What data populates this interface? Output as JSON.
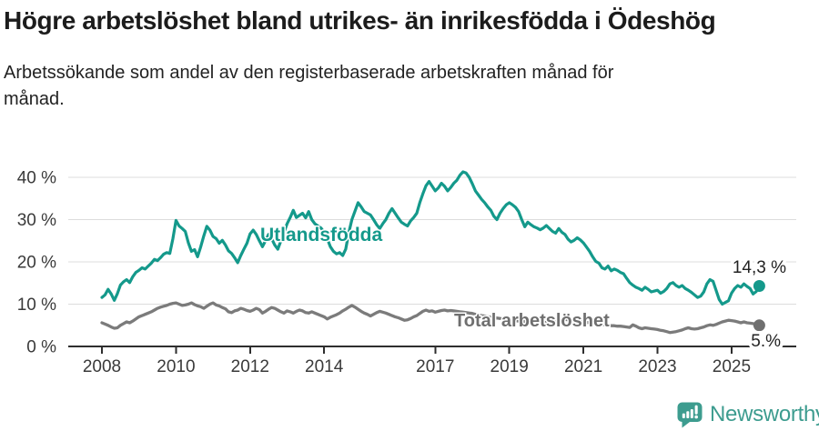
{
  "title": "Högre arbetslöshet bland utrikes- än inrikesfödda i Ödeshög",
  "subtitle": "Arbetssökande som andel av den registerbaserade arbetskraften månad för månad.",
  "labels": {
    "utlandsfodda": "Utlandsfödda",
    "total": "Total arbetslöshet",
    "end_utlandsfodda": "14,3 %",
    "end_total": "5.%"
  },
  "logo": {
    "text": "Newsworthy",
    "icon": "speech-bubble-bar-chart-exclamation-icon"
  },
  "colors": {
    "utlandsfodda_line": "#14998b",
    "total_line": "#7b7b7b",
    "title_text": "#1c1c1c",
    "axis_text": "#3a3a3a",
    "gridline": "#dcdcdc",
    "logo_teal": "#3d9c8f",
    "background": "#ffffff"
  },
  "chart_data": {
    "type": "line",
    "title": "Högre arbetslöshet bland utrikes- än inrikesfödda i Ödeshög",
    "subtitle": "Arbetssökande som andel av den registerbaserade arbetskraften månad för månad.",
    "unit": "%",
    "frequency": "monthly",
    "x_start": "2008-01",
    "x_end": "2025-10",
    "ylim": [
      0,
      44
    ],
    "grid": "horizontal",
    "legend_position": "inline-labels",
    "y_ticks": [
      {
        "label": "40 %",
        "value": 40
      },
      {
        "label": "30 %",
        "value": 30
      },
      {
        "label": "20 %",
        "value": 20
      },
      {
        "label": "10 %",
        "value": 10
      },
      {
        "label": "0 %",
        "value": 0
      }
    ],
    "x_ticks": [
      {
        "label": "2008",
        "year": 2008
      },
      {
        "label": "2010",
        "year": 2010
      },
      {
        "label": "2012",
        "year": 2012
      },
      {
        "label": "2014",
        "year": 2014
      },
      {
        "label": "2017",
        "year": 2017
      },
      {
        "label": "2019",
        "year": 2019
      },
      {
        "label": "2021",
        "year": 2021
      },
      {
        "label": "2023",
        "year": 2023
      },
      {
        "label": "2025",
        "year": 2025
      }
    ],
    "series": [
      {
        "name": "Utlandsfödda",
        "color": "#14998b",
        "end_value": 14.3,
        "end_label": "14,3 %",
        "values": [
          11.6,
          12.2,
          13.5,
          12.4,
          10.9,
          12.5,
          14.5,
          15.3,
          15.8,
          15.1,
          16.5,
          17.5,
          18.0,
          18.6,
          18.3,
          19.0,
          19.7,
          20.6,
          20.3,
          21.0,
          21.8,
          22.2,
          22.0,
          25.5,
          29.8,
          28.5,
          27.9,
          27.2,
          24.5,
          22.5,
          22.9,
          21.2,
          23.5,
          26.1,
          28.4,
          27.5,
          26.0,
          25.5,
          24.4,
          25.1,
          24.0,
          22.6,
          22.0,
          21.0,
          19.8,
          21.5,
          23.0,
          24.4,
          26.6,
          27.5,
          26.5,
          25.0,
          23.6,
          25.0,
          26.5,
          25.5,
          24.0,
          23.0,
          25.0,
          27.0,
          29.0,
          30.5,
          32.2,
          30.5,
          31.0,
          31.5,
          30.4,
          31.9,
          30.0,
          29.0,
          28.5,
          28.0,
          27.0,
          25.5,
          23.6,
          22.5,
          21.9,
          22.2,
          21.5,
          23.0,
          26.9,
          30.0,
          32.0,
          34.0,
          33.0,
          31.9,
          31.5,
          31.1,
          30.0,
          28.8,
          27.9,
          29.0,
          30.0,
          31.5,
          32.6,
          31.5,
          30.4,
          29.4,
          28.9,
          28.5,
          29.7,
          30.5,
          31.5,
          34.0,
          36.1,
          38.0,
          39.0,
          37.9,
          36.8,
          37.5,
          38.6,
          37.9,
          36.8,
          37.6,
          38.6,
          39.3,
          40.5,
          41.3,
          41.0,
          40.0,
          38.5,
          36.8,
          35.8,
          34.8,
          34.0,
          33.0,
          32.2,
          30.8,
          30.0,
          31.5,
          32.6,
          33.5,
          34.0,
          33.5,
          32.9,
          31.9,
          30.0,
          28.3,
          29.4,
          28.8,
          28.3,
          28.0,
          27.6,
          28.0,
          28.6,
          27.9,
          27.2,
          26.8,
          27.9,
          27.0,
          26.5,
          25.4,
          24.7,
          25.1,
          25.7,
          25.2,
          24.5,
          23.5,
          22.5,
          21.2,
          20.1,
          19.7,
          18.6,
          18.3,
          19.0,
          17.9,
          18.3,
          18.0,
          17.5,
          17.2,
          16.1,
          15.1,
          14.5,
          14.0,
          13.7,
          13.3,
          14.0,
          13.5,
          12.9,
          13.1,
          13.3,
          12.6,
          13.0,
          13.7,
          14.8,
          15.1,
          14.4,
          14.0,
          14.4,
          13.7,
          13.3,
          12.8,
          12.2,
          11.6,
          11.9,
          12.9,
          14.8,
          15.8,
          15.4,
          13.3,
          11.1,
          10.0,
          10.4,
          10.8,
          12.6,
          13.7,
          14.4,
          14.0,
          14.8,
          14.2,
          13.7,
          12.4,
          13.0,
          14.3
        ]
      },
      {
        "name": "Total arbetslöshet",
        "color": "#7b7b7b",
        "end_value": 5.0,
        "end_label": "5.%",
        "values": [
          5.6,
          5.3,
          5.0,
          4.6,
          4.3,
          4.4,
          5.0,
          5.4,
          5.8,
          5.6,
          6.0,
          6.5,
          7.0,
          7.3,
          7.6,
          7.9,
          8.2,
          8.6,
          9.0,
          9.3,
          9.5,
          9.7,
          10.0,
          10.2,
          10.3,
          10.0,
          9.7,
          9.8,
          10.0,
          10.3,
          9.9,
          9.6,
          9.4,
          9.0,
          9.5,
          10.0,
          10.3,
          9.8,
          9.6,
          9.2,
          8.9,
          8.2,
          8.0,
          8.4,
          8.6,
          9.0,
          8.8,
          8.5,
          8.3,
          8.6,
          9.0,
          8.7,
          7.9,
          8.3,
          8.8,
          9.2,
          9.0,
          8.6,
          8.2,
          7.9,
          8.4,
          8.2,
          7.9,
          8.3,
          8.6,
          8.4,
          8.0,
          7.9,
          8.2,
          7.9,
          7.6,
          7.3,
          7.0,
          6.5,
          6.9,
          7.2,
          7.5,
          7.9,
          8.4,
          8.8,
          9.3,
          9.7,
          9.3,
          8.8,
          8.3,
          7.9,
          7.6,
          7.2,
          7.6,
          8.0,
          8.3,
          8.1,
          7.9,
          7.6,
          7.3,
          7.0,
          6.8,
          6.5,
          6.2,
          6.3,
          6.6,
          7.0,
          7.3,
          7.8,
          8.3,
          8.6,
          8.3,
          8.4,
          8.1,
          8.3,
          8.5,
          8.6,
          8.4,
          8.5,
          8.4,
          8.3,
          8.2,
          8.1,
          8.0,
          7.9,
          7.8,
          7.6,
          7.5,
          7.3,
          7.2,
          7.0,
          6.9,
          6.8,
          6.7,
          6.6,
          6.5,
          6.4,
          6.3,
          6.2,
          6.1,
          6.0,
          5.9,
          5.9,
          5.8,
          5.8,
          5.7,
          5.7,
          5.6,
          5.6,
          5.7,
          5.8,
          6.0,
          6.2,
          6.3,
          6.4,
          6.4,
          6.3,
          6.2,
          6.1,
          6.0,
          5.9,
          5.8,
          5.7,
          5.6,
          5.5,
          5.4,
          5.3,
          5.2,
          5.1,
          5.0,
          4.9,
          4.9,
          4.8,
          4.8,
          4.7,
          4.6,
          4.5,
          5.1,
          4.8,
          4.4,
          4.2,
          4.4,
          4.3,
          4.2,
          4.1,
          4.0,
          3.8,
          3.7,
          3.5,
          3.3,
          3.4,
          3.5,
          3.7,
          3.9,
          4.2,
          4.4,
          4.2,
          4.1,
          4.2,
          4.4,
          4.6,
          4.9,
          5.1,
          5.0,
          5.2,
          5.5,
          5.8,
          6.0,
          6.2,
          6.1,
          6.0,
          5.8,
          5.6,
          5.8,
          5.6,
          5.5,
          5.4,
          5.2,
          5.0
        ]
      }
    ]
  }
}
